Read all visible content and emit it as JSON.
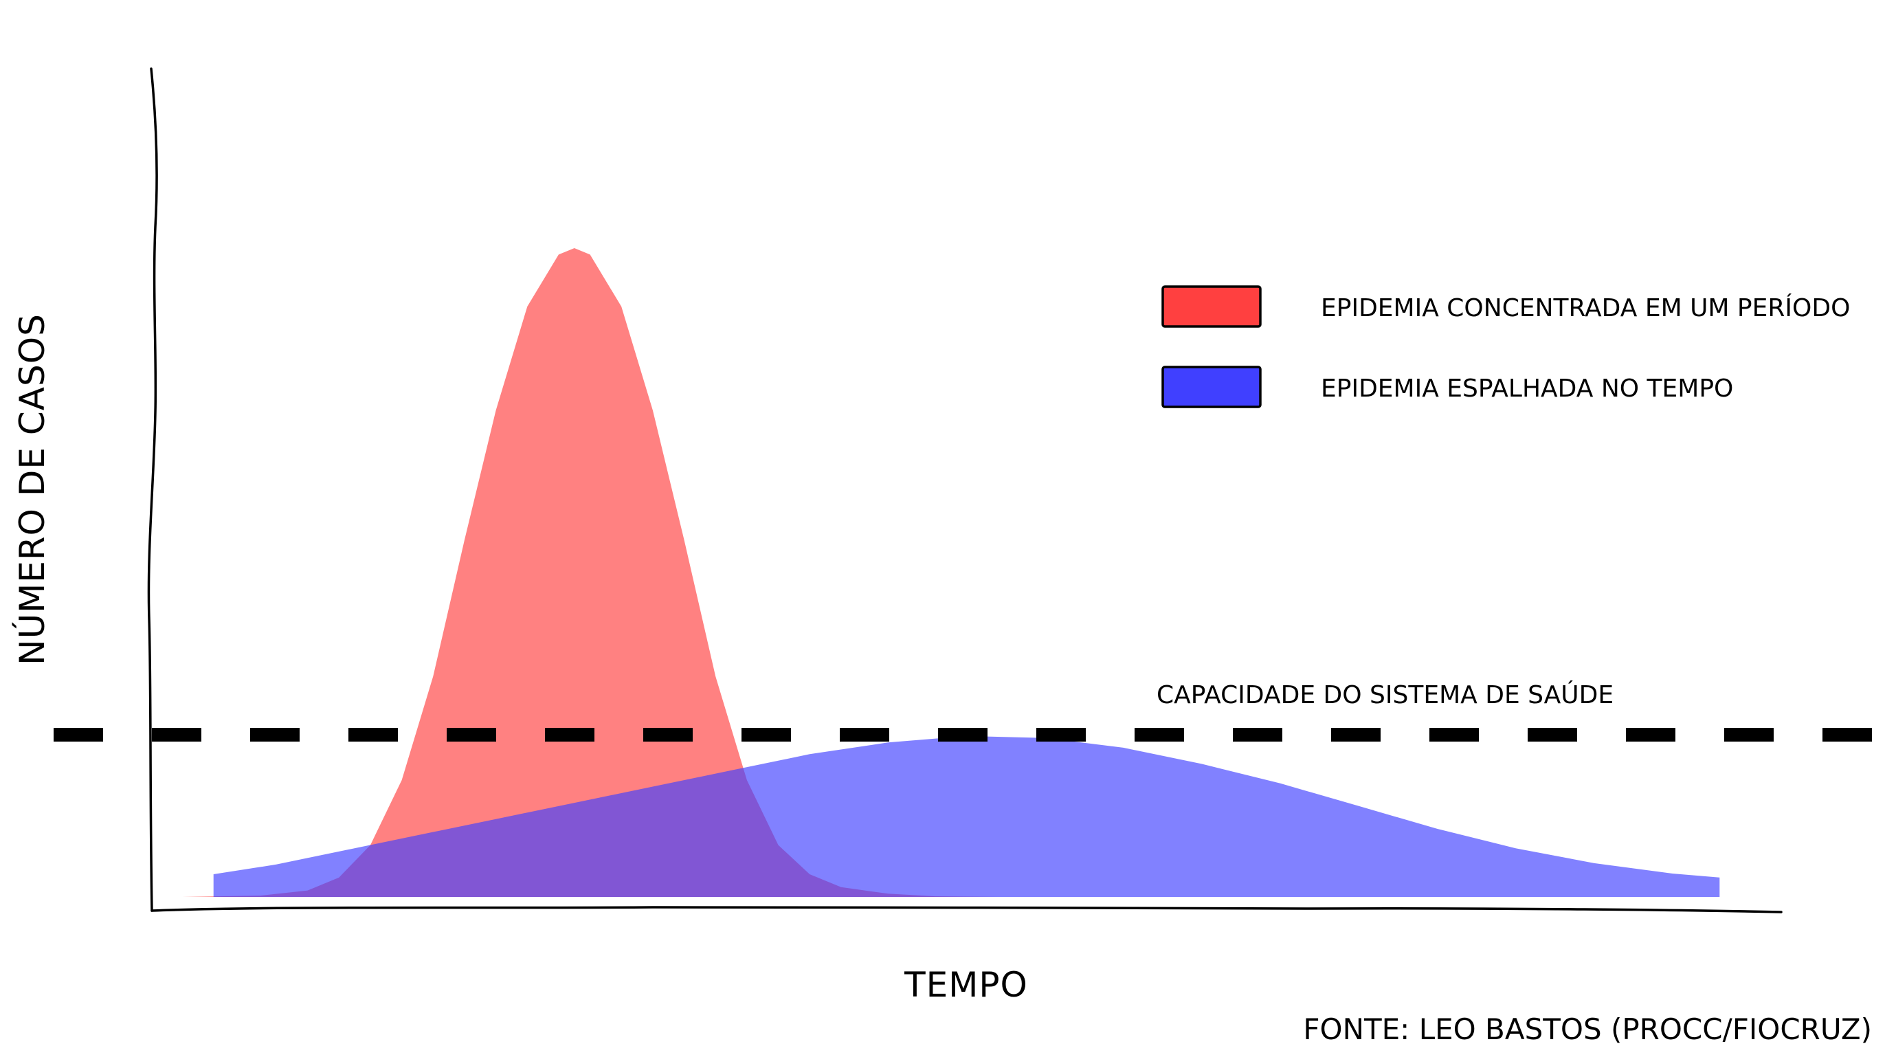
{
  "chart_data": {
    "type": "area",
    "title": "",
    "xlabel": "TEMPO",
    "ylabel": "NÚMERO DE CASOS",
    "x_ticks": [],
    "y_ticks": [],
    "xlim": [
      0,
      100
    ],
    "ylim": [
      0,
      100
    ],
    "grid": false,
    "legend_position": "top-right",
    "series": [
      {
        "name": "EPIDEMIA CONCENTRADA EM UM PERÍODO",
        "color": "#ff4040",
        "fill_color": "#ff8080",
        "x": [
          0,
          5,
          8,
          10,
          12,
          14,
          16,
          18,
          20,
          22,
          24,
          25,
          26,
          28,
          30,
          32,
          34,
          36,
          38,
          40,
          42,
          45,
          48,
          52,
          56,
          60,
          100
        ],
        "y": [
          0,
          0.2,
          1,
          3,
          8,
          18,
          34,
          55,
          75,
          91,
          99,
          100,
          99,
          91,
          75,
          55,
          34,
          18,
          8,
          3.5,
          1.5,
          0.5,
          0.1,
          0,
          0,
          0,
          0
        ]
      },
      {
        "name": "EPIDEMIA ESPALHADA NO TEMPO",
        "color": "#4040ff",
        "fill_color": "#8080ff",
        "x": [
          2,
          6,
          10,
          15,
          20,
          25,
          30,
          35,
          40,
          45,
          50,
          55,
          60,
          65,
          70,
          75,
          80,
          85,
          90,
          95,
          98
        ],
        "y": [
          3.5,
          5,
          7,
          9.5,
          12,
          14.5,
          17,
          19.5,
          22,
          23.8,
          24.8,
          24.5,
          23,
          20.5,
          17.5,
          14,
          10.5,
          7.5,
          5.2,
          3.6,
          3
        ]
      }
    ],
    "threshold": {
      "label": "CAPACIDADE DO SISTEMA DE SAÚDE",
      "y": 25,
      "style": "dashed"
    },
    "source": "FONTE: LEO BASTOS (PROCC/FIOCRUZ)"
  }
}
